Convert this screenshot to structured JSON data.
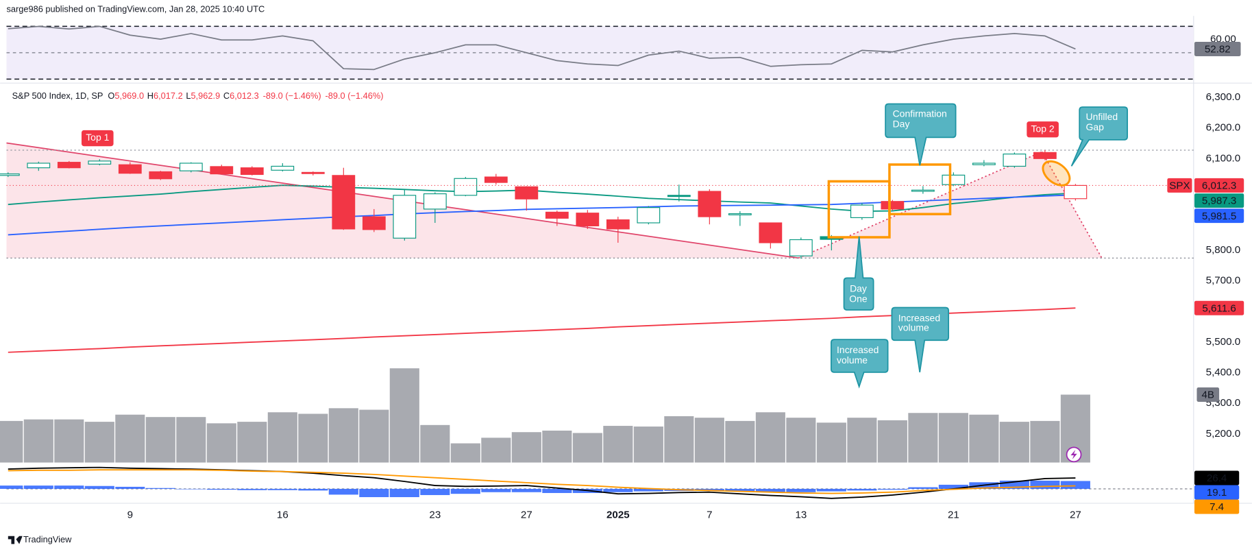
{
  "header": {
    "publisher": "sarge986 published on TradingView.com, Jan 28, 2025 10:40 UTC"
  },
  "footer": {
    "brand": "TradingView"
  },
  "chart_data": [
    {
      "type": "line",
      "levels": [
        70,
        50,
        30
      ],
      "band_color": "#f1edfa",
      "ylim": [
        27.6,
        73
      ],
      "yticks": [
        {
          "value": 60,
          "label": "60.00"
        }
      ],
      "series": [
        {
          "color": "#787b86",
          "tag_color": "#787b86",
          "values": [
            68.2,
            70,
            68,
            70,
            63.3,
            60.3,
            64.5,
            59.7,
            59.7,
            62.7,
            59,
            37.9,
            37.3,
            45.2,
            50,
            56,
            56,
            50,
            44,
            41.5,
            40.3,
            48.2,
            51.2,
            45.8,
            46.4,
            39.7,
            40.9,
            41.5,
            51.8,
            50.6,
            56,
            60.3,
            62.7,
            64.5,
            62.7,
            52.82
          ]
        }
      ]
    },
    {
      "type": "candlestick",
      "legend": {
        "symbol": "S&P 500 Index, 1D, SP",
        "fields": [
          {
            "key": "O",
            "value": "5,969.0"
          },
          {
            "key": "H",
            "value": "6,017.2"
          },
          {
            "key": "L",
            "value": "5,962.9"
          },
          {
            "key": "C",
            "value": "6,012.3"
          }
        ],
        "change": "-89.0 (−1.46%)",
        "change2": "-89.0 (−1.46%)"
      },
      "symbol_tag": "SPX",
      "close_label": "6,012.3",
      "up_color": "#089981",
      "down_color": "#f23645",
      "categories": [
        null,
        null,
        null,
        null,
        "9",
        null,
        null,
        null,
        null,
        "16",
        null,
        null,
        null,
        null,
        "23",
        null,
        null,
        "27",
        null,
        null,
        "2025",
        null,
        null,
        "7",
        null,
        null,
        "13",
        null,
        null,
        null,
        null,
        "21",
        null,
        null,
        null,
        "27"
      ],
      "open": [
        6045,
        6070,
        6088,
        6082,
        6080,
        6057,
        6060,
        6074,
        6070,
        6062,
        6055,
        6045,
        5910,
        5840,
        5935,
        5980,
        6040,
        6008,
        5925,
        5922,
        5900,
        5890,
        5980,
        5993,
        5917,
        5890,
        5782,
        5845,
        5907,
        5960,
        5995,
        6015,
        6080,
        6075,
        6120,
        5969.0
      ],
      "high": [
        6055,
        6090,
        6092,
        6098,
        6088,
        6060,
        6088,
        6080,
        6075,
        6085,
        6058,
        6070,
        5935,
        6000,
        5990,
        6040,
        6050,
        6010,
        5930,
        5932,
        5910,
        5945,
        6015,
        6000,
        5928,
        5890,
        5842,
        5850,
        5955,
        5965,
        6010,
        6055,
        6095,
        6120,
        6128,
        6017.2
      ],
      "low": [
        6040,
        6060,
        6068,
        6078,
        6050,
        6030,
        6055,
        6048,
        6045,
        6058,
        6045,
        5867,
        5860,
        5832,
        5890,
        5977,
        6015,
        5930,
        5880,
        5870,
        5825,
        5885,
        5960,
        5885,
        5880,
        5806,
        5773,
        5800,
        5900,
        5930,
        5985,
        6010,
        6075,
        6070,
        6095,
        5962.9
      ],
      "close": [
        6050,
        6085,
        6070,
        6092,
        6052,
        6034,
        6085,
        6050,
        6048,
        6075,
        6051,
        5870,
        5868,
        5980,
        5985,
        6035,
        6022,
        5968,
        5905,
        5880,
        5870,
        5940,
        5976,
        5910,
        5920,
        5825,
        5835,
        5836,
        5948,
        5935,
        5997,
        6046,
        6085,
        6115,
        6100,
        6012.3
      ],
      "ylim": [
        5104,
        6339
      ],
      "yticks": [
        {
          "value": 6300,
          "label": "6,300.0"
        },
        {
          "value": 6200,
          "label": "6,200.0"
        },
        {
          "value": 6100,
          "label": "6,100.0"
        },
        {
          "value": 5800,
          "label": "5,800.0"
        },
        {
          "value": 5700,
          "label": "5,700.0"
        },
        {
          "value": 5500,
          "label": "5,500.0"
        },
        {
          "value": 5400,
          "label": "5,400.0"
        },
        {
          "value": 5300,
          "label": "5,300.0"
        },
        {
          "value": 5200,
          "label": "5,200.0"
        }
      ],
      "series": [
        {
          "color": "#089981",
          "last_label": "5,987.3",
          "values": [
            5950,
            5958,
            5965,
            5972,
            5978,
            5984,
            5992,
            5999,
            6006,
            6013,
            6010,
            6006,
            6003,
            5999,
            5995,
            5992,
            5994,
            5997,
            5990,
            5984,
            5977,
            5970,
            5966,
            5962,
            5958,
            5955,
            5945,
            5935,
            5928,
            5929,
            5940,
            5953,
            5963,
            5974,
            5982,
            5987.3
          ]
        },
        {
          "color": "#2962ff",
          "last_label": "5,981.5",
          "values": [
            5851,
            5857,
            5863,
            5869,
            5875,
            5880,
            5885,
            5890,
            5895,
            5900,
            5905,
            5910,
            5914,
            5919,
            5923,
            5927,
            5930,
            5934,
            5936,
            5938,
            5940,
            5942,
            5945,
            5946,
            5947,
            5948,
            5949,
            5950,
            5954,
            5958,
            5962,
            5966,
            5970,
            5974,
            5978,
            5981.5
          ]
        },
        {
          "color": "#f23645",
          "last_label": "5,611.6",
          "values": [
            5467,
            5471,
            5475,
            5479,
            5484,
            5488,
            5492,
            5496,
            5500,
            5504,
            5508,
            5512,
            5517,
            5521,
            5525,
            5529,
            5533,
            5537,
            5541,
            5545,
            5550,
            5554,
            5558,
            5562,
            5566,
            5570,
            5574,
            5578,
            5583,
            5587,
            5591,
            5595,
            5599,
            5603,
            5607,
            5611.6
          ]
        }
      ],
      "annotations": [
        {
          "lines": [
            "Top 1"
          ]
        },
        {
          "lines": [
            "Top 2"
          ]
        },
        {
          "lines": [
            "Confirmation",
            "Day"
          ]
        },
        {
          "lines": [
            "Unfilled",
            "Gap"
          ]
        },
        {
          "lines": [
            "Day",
            "One"
          ]
        },
        {
          "lines": [
            "Increased",
            "volume"
          ]
        },
        {
          "lines": [
            "Increased",
            "volume"
          ]
        }
      ]
    },
    {
      "type": "bar",
      "color": "#a8aab0",
      "tag_color": "#787b86",
      "ylim": [
        0,
        5.6
      ],
      "yticks": [
        {
          "value": 4,
          "label": "4B"
        }
      ],
      "values": [
        2.45,
        2.54,
        2.54,
        2.4,
        2.82,
        2.68,
        2.68,
        2.31,
        2.4,
        2.96,
        2.87,
        3.2,
        3.11,
        5.55,
        2.21,
        1.13,
        1.46,
        1.79,
        1.88,
        1.74,
        2.16,
        2.12,
        2.73,
        2.64,
        2.45,
        2.96,
        2.64,
        2.35,
        2.64,
        2.49,
        2.92,
        2.92,
        2.82,
        2.4,
        2.45,
        4.0
      ]
    },
    {
      "type": "combo",
      "ylim": [
        -31,
        58
      ],
      "series": [
        {
          "style": "bar",
          "color": "#2962ff",
          "values": [
            8,
            8,
            8,
            7,
            5,
            2,
            -1,
            -2,
            -3,
            -3,
            -4,
            -14,
            -20,
            -20,
            -15,
            -12,
            -8,
            -8,
            -10,
            -10,
            -8,
            -6,
            -5,
            -4,
            -6,
            -8,
            -8,
            -6,
            -4,
            -2,
            4,
            10,
            16,
            20,
            20,
            19.1
          ]
        },
        {
          "style": "line",
          "color": "#000000",
          "values": [
            48,
            50,
            51,
            52,
            50,
            49,
            48,
            46,
            44,
            42,
            38,
            32,
            27,
            18,
            8,
            6,
            7,
            8,
            2,
            -4,
            -12,
            -11,
            -9,
            -8,
            -12,
            -16,
            -19,
            -23,
            -20,
            -15,
            -8,
            0,
            9,
            17,
            25,
            26.4
          ]
        },
        {
          "style": "line",
          "color": "#ff9800",
          "values": [
            44,
            45,
            45,
            46,
            46,
            46,
            46,
            45,
            43,
            42,
            40,
            38,
            35,
            31,
            27,
            23,
            19,
            15,
            11,
            8,
            4,
            1,
            -2,
            -4,
            -6,
            -8,
            -10,
            -11,
            -10,
            -8,
            -4,
            -1,
            2,
            4,
            6,
            7.4
          ]
        }
      ]
    }
  ]
}
